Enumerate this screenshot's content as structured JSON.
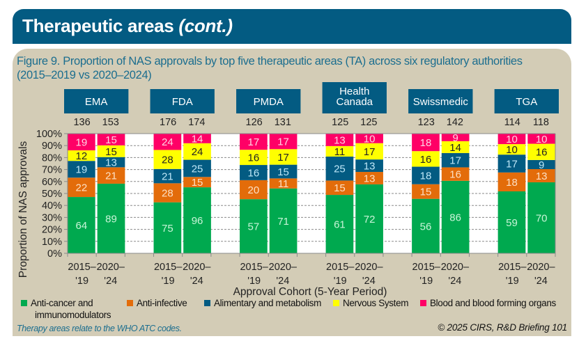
{
  "header": {
    "title_main": "Therapeutic areas ",
    "title_italic": "(cont.)"
  },
  "figure": {
    "title_line1": "Figure 9. Proportion of NAS approvals by top five therapeutic areas (TA) across six regulatory authorities",
    "title_line2": "(2015–2019 vs 2020–2024)"
  },
  "footnote": "Therapy areas relate to the WHO ATC codes.",
  "copyright": "© 2025 CIRS, R&D Briefing 101",
  "chart_data": {
    "type": "bar",
    "stacked": true,
    "normalized": true,
    "title": "Figure 9. Proportion of NAS approvals by top five therapeutic areas (TA) across six regulatory authorities (2015–2019 vs 2020–2024)",
    "xlabel": "Approval Cohort (5-Year Period)",
    "ylabel": "Proportion of NAS approvals",
    "ylim": [
      0,
      100
    ],
    "yticks": [
      "0%",
      "10%",
      "20%",
      "30%",
      "40%",
      "50%",
      "60%",
      "70%",
      "80%",
      "90%",
      "100%"
    ],
    "grid": "horizontal dashed",
    "legend_position": "bottom",
    "period_labels": [
      [
        "2015–",
        "'19"
      ],
      [
        "2020–",
        "'24"
      ]
    ],
    "series": [
      {
        "name": "Anti-cancer and immunomodulators",
        "color": "#00a94f",
        "label_color": "#c8f5d8"
      },
      {
        "name": "Anti-infective",
        "color": "#e36c0a",
        "label_color": "#fde0c4"
      },
      {
        "name": "Alimentary and metabolism",
        "color": "#035b82",
        "label_color": "#bde6f7"
      },
      {
        "name": "Nervous System",
        "color": "#ffff00",
        "label_color": "#222222"
      },
      {
        "name": "Blood and blood forming organs",
        "color": "#ff0066",
        "label_color": "#ffd6e6"
      }
    ],
    "groups": [
      {
        "name": [
          "EMA"
        ],
        "totals": [
          136,
          153
        ],
        "values": [
          [
            64,
            22,
            19,
            12,
            19
          ],
          [
            89,
            21,
            13,
            15,
            15
          ]
        ]
      },
      {
        "name": [
          "FDA"
        ],
        "totals": [
          176,
          174
        ],
        "values": [
          [
            75,
            28,
            21,
            28,
            24
          ],
          [
            96,
            15,
            25,
            24,
            14
          ]
        ]
      },
      {
        "name": [
          "PMDA"
        ],
        "totals": [
          126,
          131
        ],
        "values": [
          [
            57,
            20,
            16,
            16,
            17
          ],
          [
            71,
            11,
            15,
            17,
            17
          ]
        ]
      },
      {
        "name": [
          "Health",
          "Canada"
        ],
        "totals": [
          125,
          125
        ],
        "values": [
          [
            61,
            15,
            25,
            11,
            13
          ],
          [
            72,
            13,
            13,
            17,
            10
          ]
        ]
      },
      {
        "name": [
          "Swissmedic"
        ],
        "totals": [
          123,
          142
        ],
        "values": [
          [
            56,
            15,
            18,
            16,
            18
          ],
          [
            86,
            16,
            17,
            14,
            9
          ]
        ]
      },
      {
        "name": [
          "TGA"
        ],
        "totals": [
          114,
          118
        ],
        "values": [
          [
            59,
            18,
            17,
            10,
            10
          ],
          [
            70,
            13,
            9,
            16,
            10
          ]
        ]
      }
    ]
  },
  "legend": {
    "items": [
      {
        "label": "Anti-cancer and",
        "color": "#00a94f"
      },
      {
        "label": "Anti-infective",
        "color": "#e36c0a"
      },
      {
        "label": "Alimentary and metabolism",
        "color": "#035b82"
      },
      {
        "label": "Nervous System",
        "color": "#ffff00"
      },
      {
        "label": "Blood and blood forming organs",
        "color": "#ff0066"
      }
    ],
    "continuation": "immunomodulators"
  }
}
